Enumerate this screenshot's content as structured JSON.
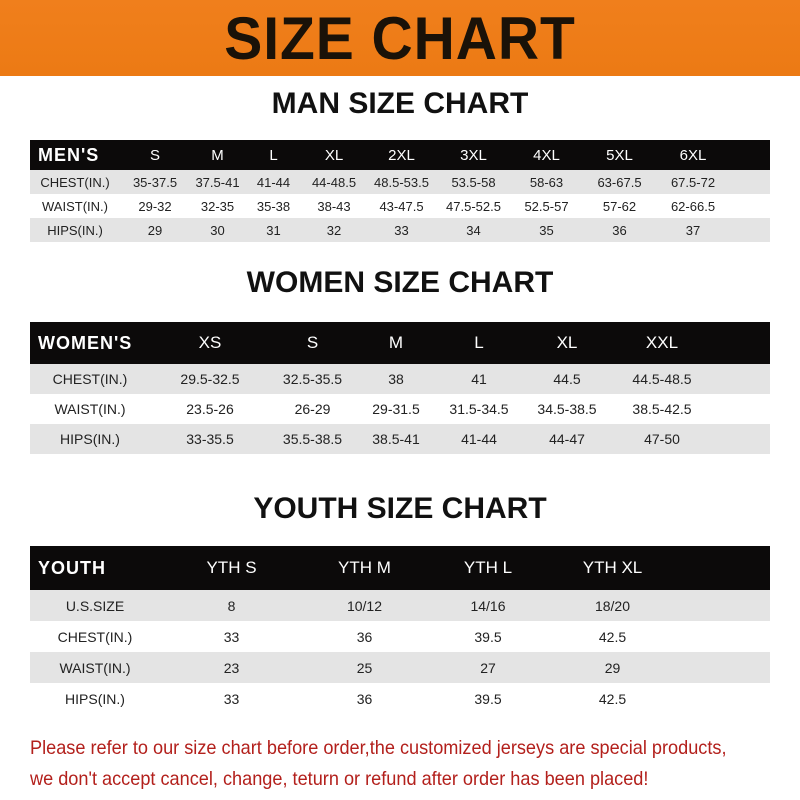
{
  "title": "SIZE CHART",
  "men": {
    "heading": "MAN SIZE CHART",
    "header": [
      "MEN'S",
      "S",
      "M",
      "L",
      "XL",
      "2XL",
      "3XL",
      "4XL",
      "5XL",
      "6XL"
    ],
    "rows": [
      [
        "CHEST(IN.)",
        "35-37.5",
        "37.5-41",
        "41-44",
        "44-48.5",
        "48.5-53.5",
        "53.5-58",
        "58-63",
        "63-67.5",
        "67.5-72"
      ],
      [
        "WAIST(IN.)",
        "29-32",
        "32-35",
        "35-38",
        "38-43",
        "43-47.5",
        "47.5-52.5",
        "52.5-57",
        "57-62",
        "62-66.5"
      ],
      [
        "HIPS(IN.)",
        "29",
        "30",
        "31",
        "32",
        "33",
        "34",
        "35",
        "36",
        "37"
      ]
    ]
  },
  "women": {
    "heading": "WOMEN SIZE CHART",
    "header": [
      "WOMEN'S",
      "XS",
      "S",
      "M",
      "L",
      "XL",
      "XXL"
    ],
    "rows": [
      [
        "CHEST(IN.)",
        "29.5-32.5",
        "32.5-35.5",
        "38",
        "41",
        "44.5",
        "44.5-48.5"
      ],
      [
        "WAIST(IN.)",
        "23.5-26",
        "26-29",
        "29-31.5",
        "31.5-34.5",
        "34.5-38.5",
        "38.5-42.5"
      ],
      [
        "HIPS(IN.)",
        "33-35.5",
        "35.5-38.5",
        "38.5-41",
        "41-44",
        "44-47",
        "47-50"
      ]
    ]
  },
  "youth": {
    "heading": "YOUTH SIZE CHART",
    "header": [
      "YOUTH",
      "YTH S",
      "YTH M",
      "YTH L",
      "YTH XL"
    ],
    "rows": [
      [
        "U.S.SIZE",
        "8",
        "10/12",
        "14/16",
        "18/20"
      ],
      [
        "CHEST(IN.)",
        "33",
        "36",
        "39.5",
        "42.5"
      ],
      [
        "WAIST(IN.)",
        "23",
        "25",
        "27",
        "29"
      ],
      [
        "HIPS(IN.)",
        "33",
        "36",
        "39.5",
        "42.5"
      ]
    ]
  },
  "footer": [
    "Please refer to our size chart before order,the customized jerseys are special products,",
    "we don't accept cancel, change, teturn or refund after order has been placed!"
  ]
}
